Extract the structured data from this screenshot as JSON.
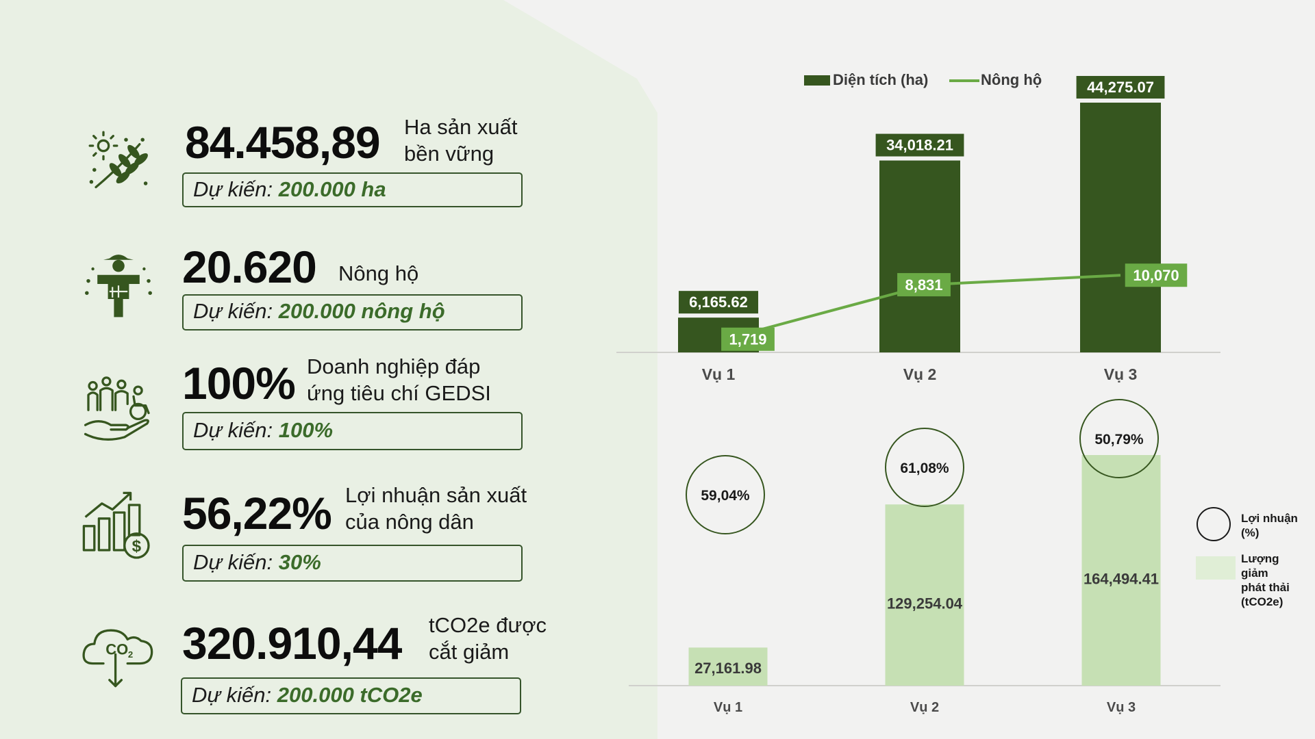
{
  "metrics": [
    {
      "icon": "leaf-branch-icon",
      "value": "84.458,89",
      "desc_line1": "Ha sản xuất",
      "desc_line2": "bền vững",
      "target_prefix": "Dự kiến:",
      "target_value": "200.000 ha"
    },
    {
      "icon": "scarecrow-icon",
      "value": "20.620",
      "desc_line1": "Nông hộ",
      "desc_line2": "",
      "target_prefix": "Dự kiến:",
      "target_value": "200.000 nông hộ"
    },
    {
      "icon": "family-hand-icon",
      "value": "100%",
      "desc_line1": "Doanh nghiệp đáp",
      "desc_line2": "ứng tiêu chí GEDSI",
      "target_prefix": "Dự kiến:",
      "target_value": "100%"
    },
    {
      "icon": "growth-chart-dollar-icon",
      "value": "56,22%",
      "desc_line1": "Lợi nhuận sản xuất",
      "desc_line2": "của nông dân",
      "target_prefix": "Dự kiến:",
      "target_value": "30%"
    },
    {
      "icon": "co2-cloud-icon",
      "value": "320.910,44",
      "desc_line1": "tCO2e được",
      "desc_line2": "cắt giảm",
      "target_prefix": "Dự kiến:",
      "target_value": "200.000 tCO2e"
    }
  ],
  "icon_text": {
    "co2": "CO",
    "co2_sub": "2",
    "dollar": "$"
  },
  "colors": {
    "dark_green": "#36561f",
    "light_green": "#6aaa45",
    "pale_green": "#c6e0b4",
    "panel_bg": "#e9f0e4",
    "page_bg": "#f2f2f1"
  },
  "chart_data": [
    {
      "type": "bar",
      "categories": [
        "Vụ 1",
        "Vụ 2",
        "Vụ 3"
      ],
      "series": [
        {
          "name": "Diện tích (ha)",
          "type": "bar",
          "values": [
            6165.62,
            34018.21,
            44275.07
          ],
          "labels": [
            "6,165.62",
            "34,018.21",
            "44,275.07"
          ]
        },
        {
          "name": "Nông hộ",
          "type": "line",
          "values": [
            1719,
            8831,
            10070
          ],
          "labels": [
            "1,719",
            "8,831",
            "10,070"
          ]
        }
      ],
      "legend": "top",
      "ylim": [
        0,
        44275.07
      ]
    },
    {
      "type": "bar",
      "categories": [
        "Vụ 1",
        "Vụ 2",
        "Vụ 3"
      ],
      "series": [
        {
          "name": "Lượng giảm phát thải (tCO2e)",
          "type": "bar",
          "values": [
            27161.98,
            129254.04,
            164494.41
          ],
          "labels": [
            "27,161.98",
            "129,254.04",
            "164,494.41"
          ]
        },
        {
          "name": "Lợi nhuận (%)",
          "type": "bubble",
          "values": [
            59.04,
            61.08,
            50.79
          ],
          "labels": [
            "59,04%",
            "61,08%",
            "50,79%"
          ]
        }
      ],
      "legend": "right",
      "legend_labels": {
        "bubble_lines": [
          "Lợi nhuận",
          "(%)"
        ],
        "bar_lines": [
          "Lượng",
          "giảm",
          "phát thải",
          "(tCO2e)"
        ]
      }
    }
  ]
}
